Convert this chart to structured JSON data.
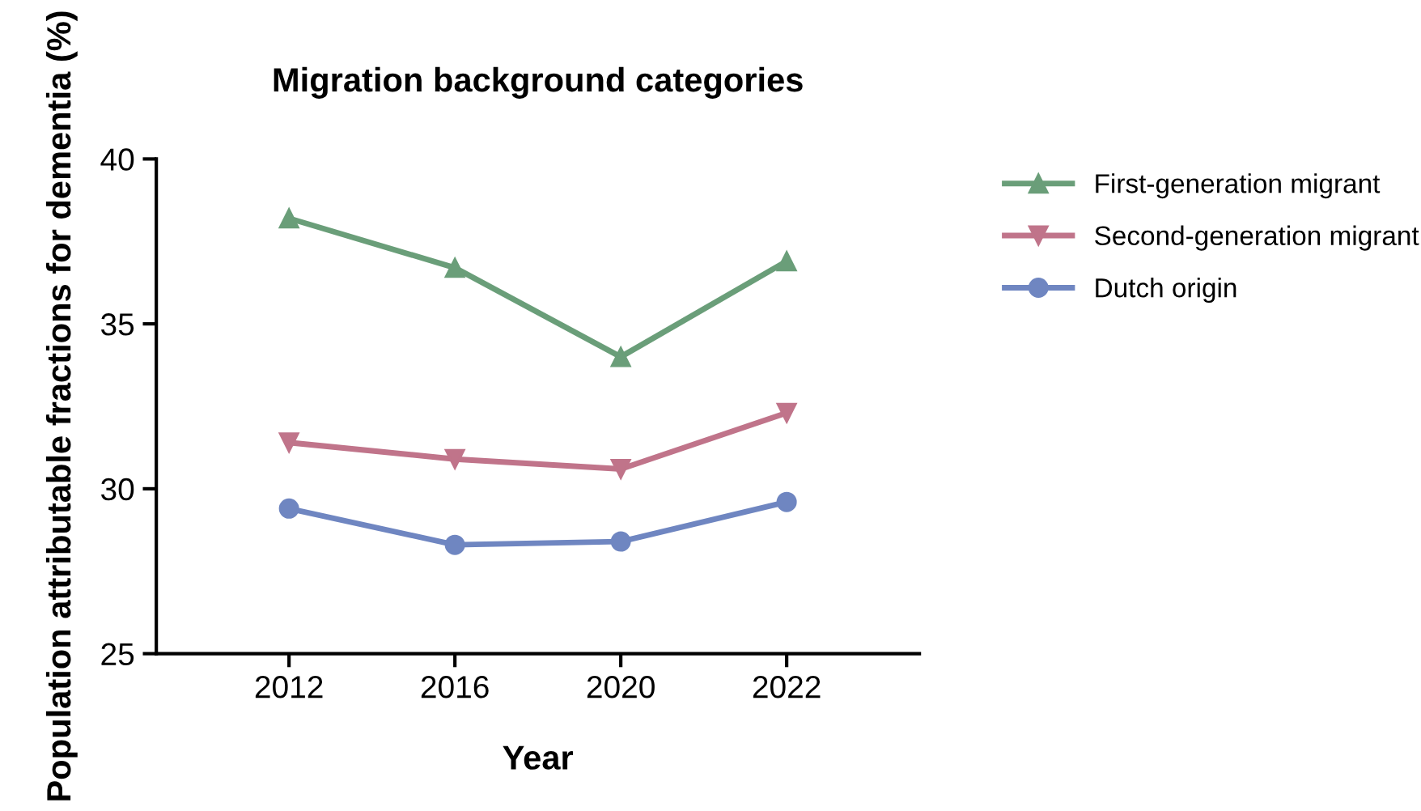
{
  "chart_data": {
    "type": "line",
    "title": "Migration background categories",
    "xlabel": "Year",
    "ylabel": "Population attributable fractions for dementia (%)",
    "categories": [
      "2012",
      "2016",
      "2020",
      "2022"
    ],
    "series": [
      {
        "name": "First-generation migrant",
        "color": "#6a9e79",
        "marker": "triangle",
        "values": [
          38.2,
          36.7,
          34.0,
          36.9
        ]
      },
      {
        "name": "Second-generation migrant",
        "color": "#c0748a",
        "marker": "triangle-down",
        "values": [
          31.4,
          30.9,
          30.6,
          32.3
        ]
      },
      {
        "name": "Dutch origin",
        "color": "#6f86c1",
        "marker": "circle",
        "values": [
          29.4,
          28.3,
          28.4,
          29.6
        ]
      }
    ],
    "ylim": [
      25,
      40
    ],
    "yticks": [
      25,
      30,
      35,
      40
    ],
    "grid": false,
    "legend": "top right",
    "line_style": "solid"
  }
}
